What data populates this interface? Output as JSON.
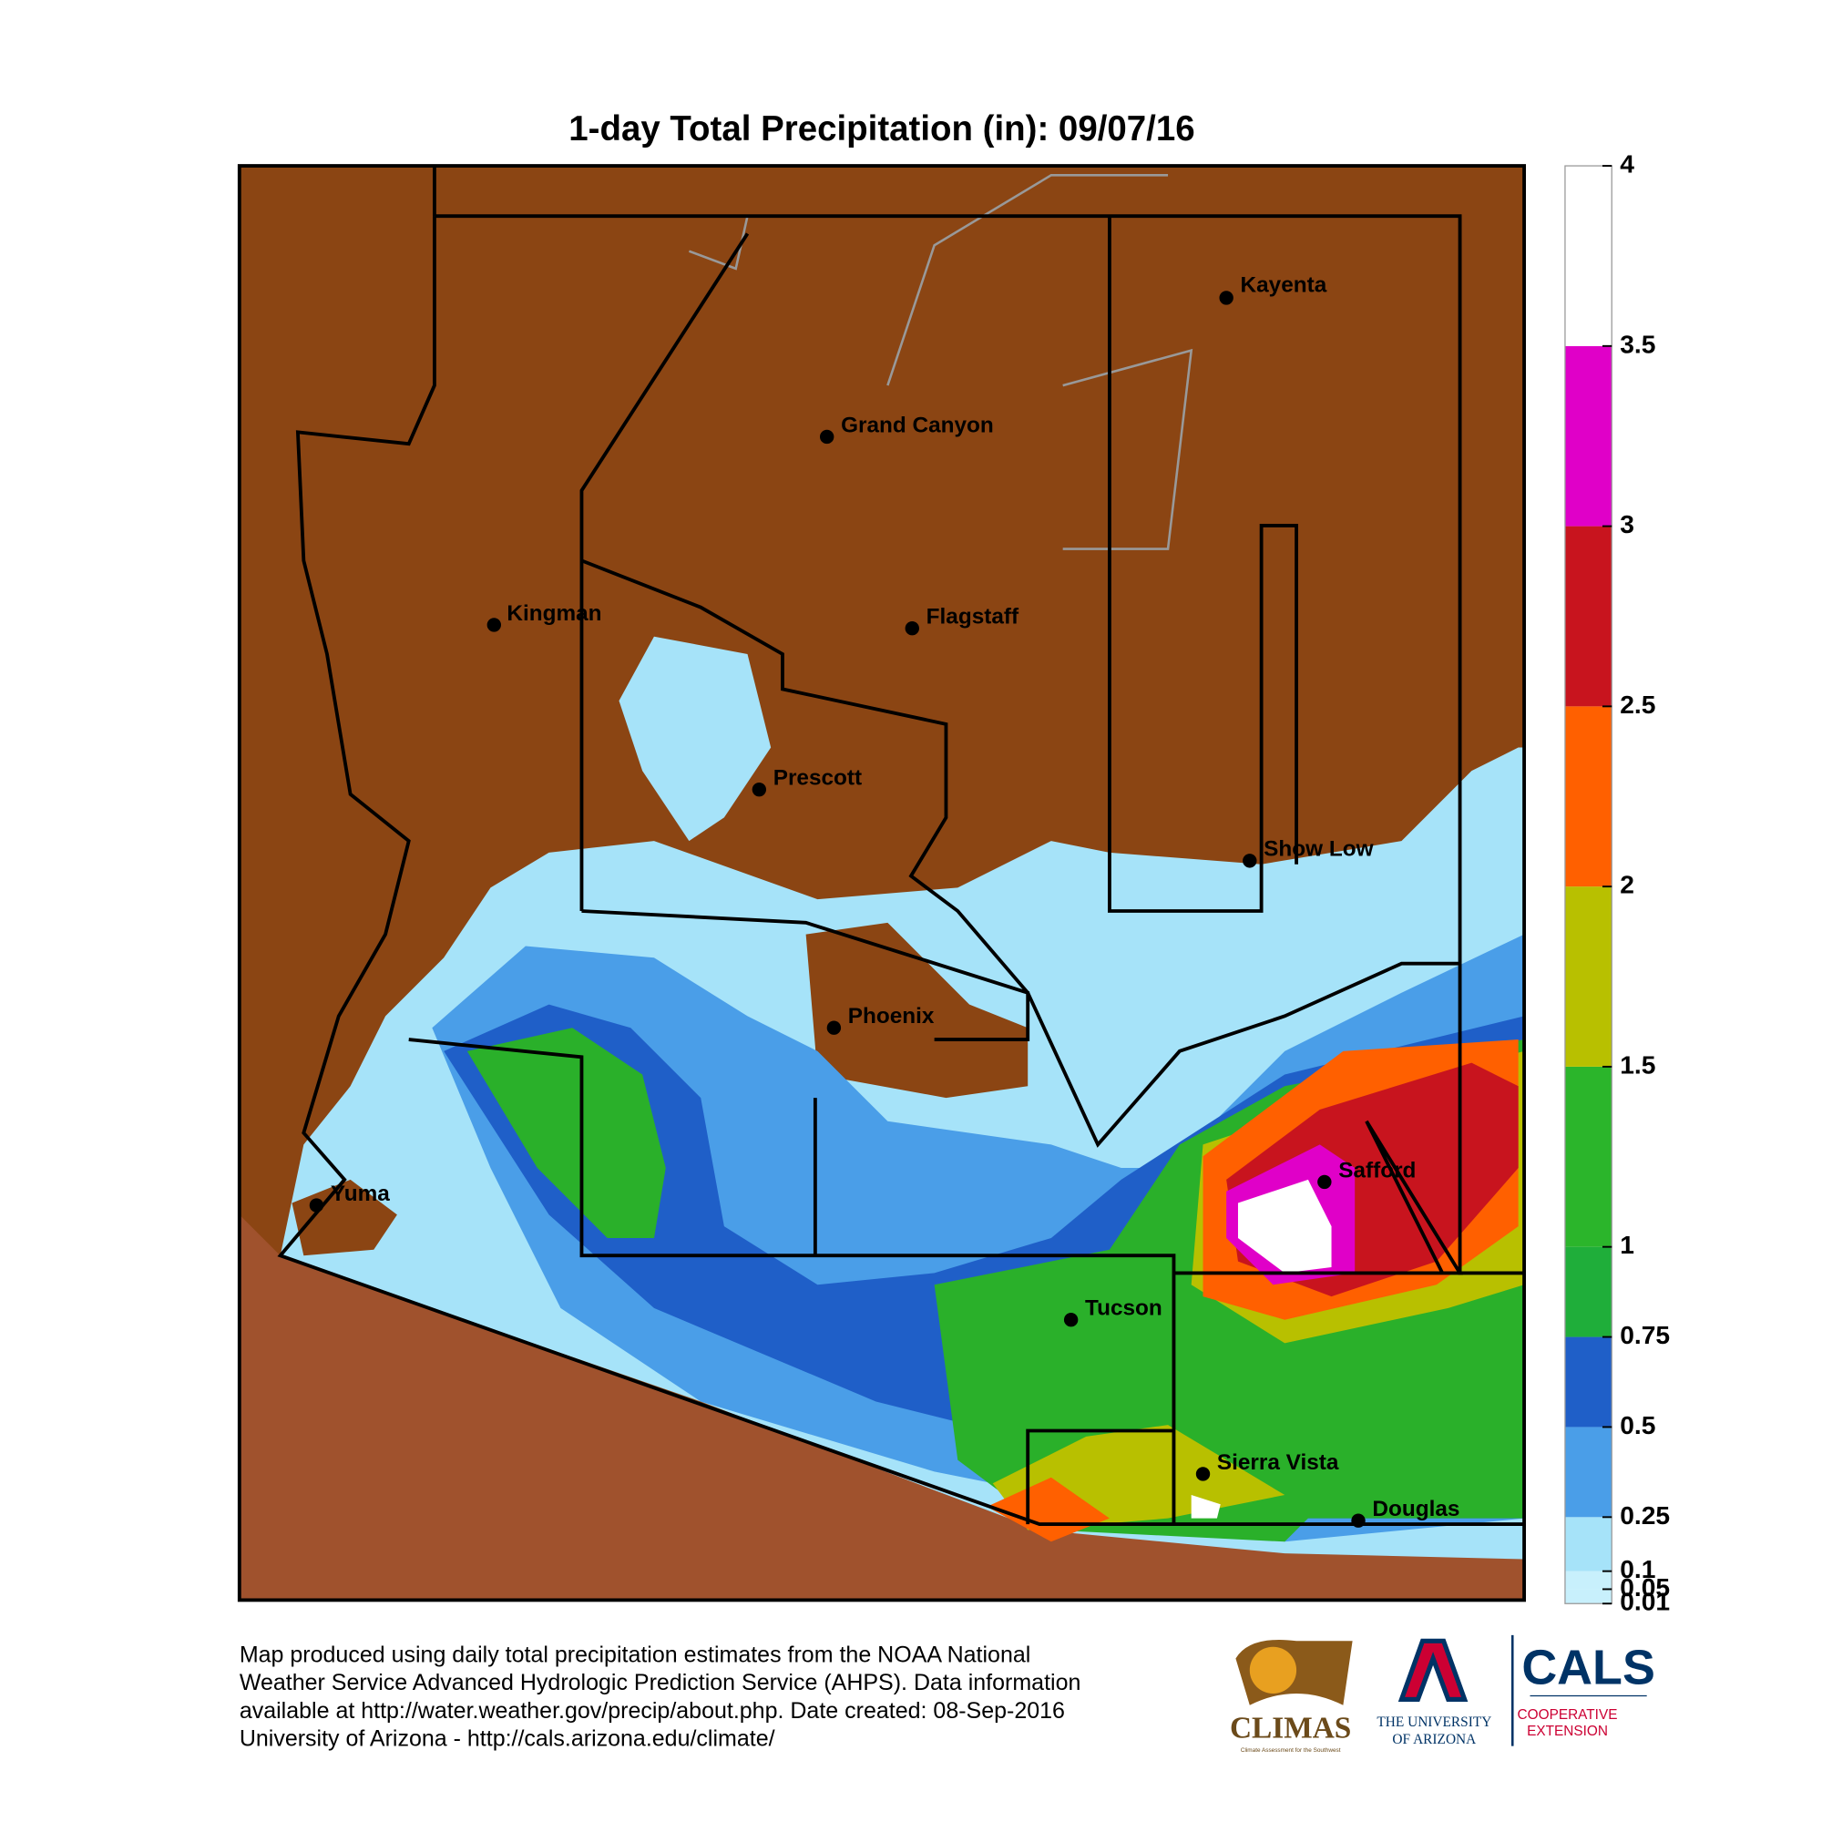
{
  "title": "1-day Total Precipitation (in): 09/07/16",
  "cities": [
    "Kayenta",
    "Grand Canyon",
    "Kingman",
    "Flagstaff",
    "Prescott",
    "Show Low",
    "Phoenix",
    "Yuma",
    "Safford",
    "Tucson",
    "Sierra Vista",
    "Douglas"
  ],
  "legend": {
    "ticks": [
      0.01,
      0.05,
      0.1,
      0.25,
      0.5,
      0.75,
      1,
      1.5,
      2,
      2.5,
      3,
      3.5,
      4
    ],
    "colors": [
      "#c8f0fc",
      "#c8f0fc",
      "#a6e3f9",
      "#4a9ee8",
      "#1f5fc8",
      "#1fae3a",
      "#2bb52b",
      "#b8c000",
      "#ff6000",
      "#c8141e",
      "#e000c8",
      "#ffffff"
    ]
  },
  "footer": [
    "Map produced using daily total precipitation estimates from the NOAA National",
    "Weather Service Advanced Hydrologic Prediction Service (AHPS). Data information",
    "available at http://water.weather.gov/precip/about.php. Date created: 08-Sep-2016",
    "University of Arizona - http://cals.arizona.edu/climate/"
  ],
  "logos": {
    "climas": "CLIMAS",
    "climas_sub": "Climate Assessment for the Southwest",
    "ua_1": "THE UNIVERSITY",
    "ua_2": "OF ARIZONA",
    "cals": "CALS",
    "cals_1": "COOPERATIVE",
    "cals_2": "EXTENSION"
  }
}
